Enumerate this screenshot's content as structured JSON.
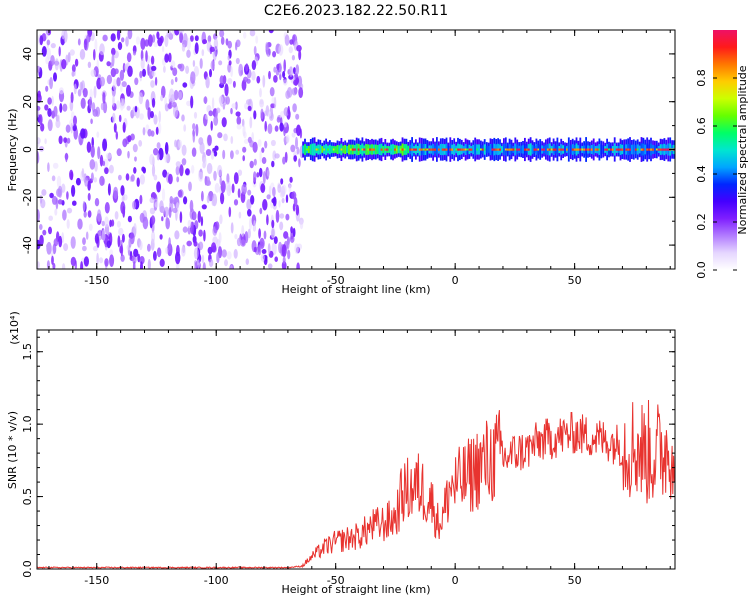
{
  "title": "C2E6.2023.182.22.50.R11",
  "colors": {
    "snr_line": "#e8332f",
    "colormap": [
      "#ffffff",
      "#e5d6ff",
      "#b27cff",
      "#7f1fff",
      "#4400ff",
      "#0026ff",
      "#00a6ff",
      "#00e6d0",
      "#00ff66",
      "#66ff00",
      "#ccff00",
      "#ffcc00",
      "#ff7700",
      "#ff1a1a",
      "#ee1166"
    ]
  },
  "chart_data": [
    {
      "type": "heatmap",
      "name": "spectrogram",
      "xlabel": "Height of straight line (km)",
      "ylabel": "Frequency (Hz)",
      "xlim": [
        -175,
        92
      ],
      "ylim": [
        -50,
        50
      ],
      "x_ticks": [
        "-150",
        "-100",
        "-50",
        "0",
        "50"
      ],
      "y_ticks": [
        "-40",
        "-20",
        "0",
        "20",
        "40"
      ],
      "colorbar": {
        "label": "Normalized spectral amplitude",
        "range": [
          0,
          1
        ],
        "ticks": [
          "0.0",
          "0.2",
          "0.4",
          "0.6",
          "0.8"
        ]
      },
      "regions": [
        {
          "x_range": [
            -175,
            -64
          ],
          "y_range": [
            -50,
            50
          ],
          "amplitude": [
            0.05,
            0.25
          ],
          "description": "broadband noise"
        },
        {
          "x_range": [
            -64,
            92
          ],
          "center_frequency": 0,
          "band_halfwidth": 4,
          "amplitude": [
            0.4,
            1.0
          ],
          "description": "narrowband signal at 0 Hz"
        }
      ]
    },
    {
      "type": "line",
      "name": "snr",
      "xlabel": "Height of straight line (km)",
      "ylabel": "SNR (10 * v/v)",
      "y_scale_note": "(x10⁴)",
      "xlim": [
        -175,
        92
      ],
      "ylim": [
        0,
        1.65
      ],
      "x_ticks": [
        "-150",
        "-100",
        "-50",
        "0",
        "50"
      ],
      "y_ticks": [
        "0.0",
        "0.5",
        "1.0",
        "1.5"
      ],
      "series": [
        {
          "x": [
            -175,
            -150,
            -100,
            -70,
            -64,
            -60,
            -55,
            -50,
            -45,
            -40,
            -35,
            -30,
            -25,
            -22,
            -20,
            -15,
            -10,
            -7,
            -5,
            -2,
            0,
            5,
            10,
            15,
            20,
            25,
            30,
            35,
            40,
            45,
            50,
            55,
            60,
            65,
            70,
            75,
            80,
            85,
            90,
            92
          ],
          "y": [
            0.01,
            0.01,
            0.01,
            0.01,
            0.02,
            0.08,
            0.14,
            0.18,
            0.2,
            0.22,
            0.28,
            0.3,
            0.34,
            0.5,
            0.52,
            0.55,
            0.45,
            0.3,
            0.35,
            0.55,
            0.55,
            0.6,
            0.68,
            0.72,
            0.76,
            0.8,
            0.82,
            0.88,
            0.9,
            0.92,
            0.94,
            0.92,
            0.9,
            0.88,
            0.85,
            0.85,
            0.8,
            0.8,
            0.85,
            0.85
          ]
        }
      ]
    }
  ]
}
